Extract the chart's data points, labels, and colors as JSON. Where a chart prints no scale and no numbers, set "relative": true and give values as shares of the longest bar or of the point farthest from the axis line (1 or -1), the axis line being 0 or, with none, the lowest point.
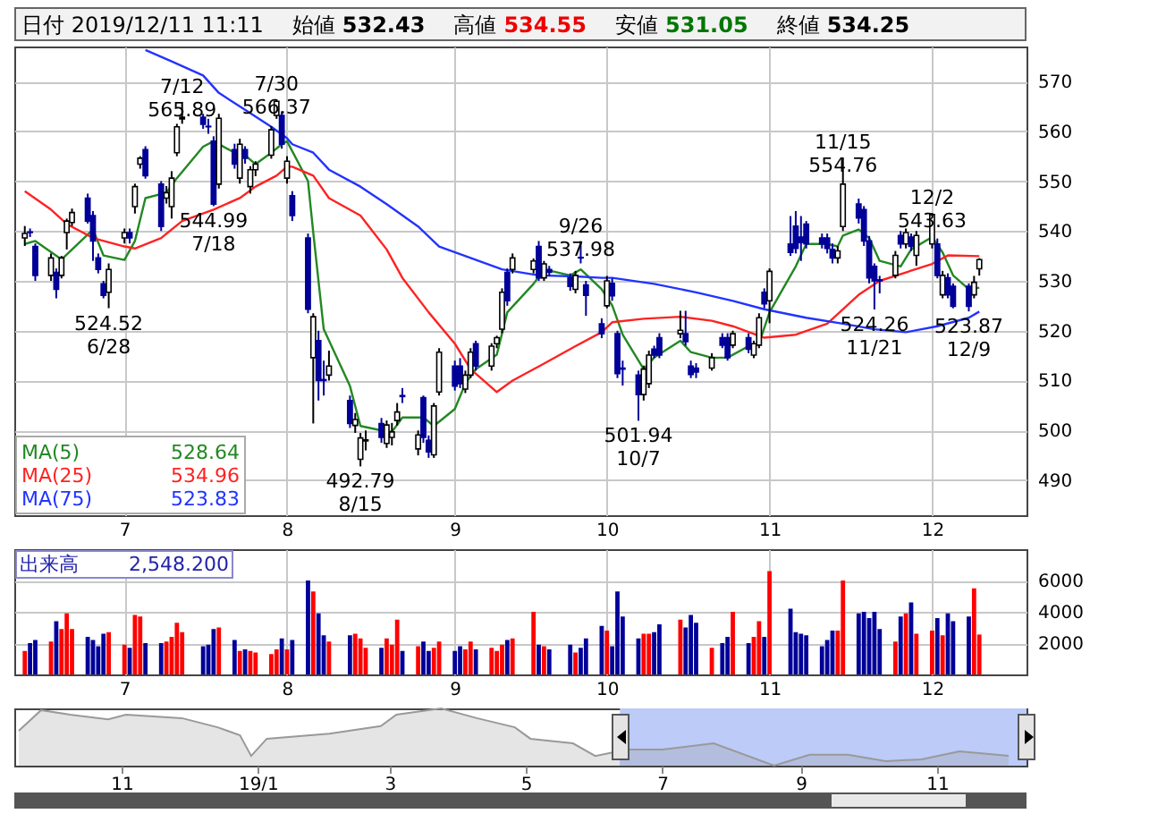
{
  "chart_data": [
    {
      "type": "candlestick",
      "title": "日付 2019/12/11 11:11",
      "colors": [
        "#ffffff",
        "#000099",
        "#000099",
        "#ffffff",
        "#000099",
        "#ffffff",
        "#ffffff",
        "#ffffff",
        "#000099",
        "#000099",
        "#000099",
        "#000099",
        "#ffffff",
        "#ffffff",
        "#000099",
        "#ffffff",
        "#ffffff",
        "#000099",
        "#000099",
        "#ffffff",
        "#ffffff",
        "#ffffff",
        "#ffffff",
        "#000099",
        "#000099",
        "#000099",
        "#ffffff",
        "#000099",
        "#ffffff",
        "#000099",
        "#ffffff",
        "#ffffff",
        "#ffffff",
        "#ffffff",
        "#000099",
        "#ffffff",
        "#000099",
        "#000099",
        "#ffffff",
        "#000099",
        "#000099",
        "#ffffff",
        "#000099",
        "#ffffff",
        "#ffffff",
        "#ffffff",
        "#000099",
        "#ffffff",
        "#ffffff",
        "#ffffff",
        "#000099",
        "#ffffff",
        "#000099",
        "#000099",
        "#ffffff",
        "#ffffff",
        "#000099",
        "#000099",
        "#ffffff",
        "#ffffff",
        "#000099",
        "#ffffff",
        "#ffffff",
        "#ffffff",
        "#000099",
        "#ffffff",
        "#ffffff",
        "#000099",
        "#ffffff",
        "#000099",
        "#000099",
        "#ffffff",
        "#000099",
        "#000099",
        "#000099",
        "#ffffff",
        "#000099",
        "#000099",
        "#000099",
        "#000099",
        "#ffffff",
        "#ffffff",
        "#000099",
        "#000099",
        "#ffffff",
        "#000099",
        "#000099",
        "#000099",
        "#ffffff",
        "#000099",
        "#000099",
        "#ffffff",
        "#000099",
        "#ffffff",
        "#ffffff",
        "#000099",
        "#ffffff",
        "#000099",
        "#000099",
        "#000099",
        "#000099",
        "#000099",
        "#000099",
        "#000099",
        "#ffffff",
        "#ffffff",
        "#000099",
        "#000099",
        "#000099",
        "#000099",
        "#000099",
        "#ffffff",
        "#000099",
        "#ffffff",
        "#000099",
        "#ffffff",
        "#ffffff",
        "#000099",
        "#ffffff",
        "#000099",
        "#000099",
        "#000099",
        "#ffffff",
        "#ffffff"
      ],
      "x": [
        "2019-06-12",
        "2019-06-13",
        "2019-06-14",
        "2019-06-17",
        "2019-06-18",
        "2019-06-19",
        "2019-06-20",
        "2019-06-21",
        "2019-06-24",
        "2019-06-25",
        "2019-06-26",
        "2019-06-27",
        "2019-06-28",
        "2019-07-01",
        "2019-07-02",
        "2019-07-03",
        "2019-07-04",
        "2019-07-05",
        "2019-07-08",
        "2019-07-09",
        "2019-07-10",
        "2019-07-11",
        "2019-07-12",
        "2019-07-16",
        "2019-07-17",
        "2019-07-18",
        "2019-07-19",
        "2019-07-22",
        "2019-07-23",
        "2019-07-24",
        "2019-07-25",
        "2019-07-26",
        "2019-07-29",
        "2019-07-30",
        "2019-07-31",
        "2019-08-01",
        "2019-08-02",
        "2019-08-05",
        "2019-08-06",
        "2019-08-07",
        "2019-08-08",
        "2019-08-09",
        "2019-08-13",
        "2019-08-14",
        "2019-08-15",
        "2019-08-16",
        "2019-08-19",
        "2019-08-20",
        "2019-08-21",
        "2019-08-22",
        "2019-08-23",
        "2019-08-26",
        "2019-08-27",
        "2019-08-28",
        "2019-08-29",
        "2019-08-30",
        "2019-09-02",
        "2019-09-03",
        "2019-09-04",
        "2019-09-05",
        "2019-09-06",
        "2019-09-09",
        "2019-09-10",
        "2019-09-11",
        "2019-09-12",
        "2019-09-13",
        "2019-09-17",
        "2019-09-18",
        "2019-09-19",
        "2019-09-20",
        "2019-09-24",
        "2019-09-25",
        "2019-09-26",
        "2019-09-27",
        "2019-09-30",
        "2019-10-01",
        "2019-10-02",
        "2019-10-03",
        "2019-10-04",
        "2019-10-07",
        "2019-10-08",
        "2019-10-09",
        "2019-10-10",
        "2019-10-11",
        "2019-10-15",
        "2019-10-16",
        "2019-10-17",
        "2019-10-18",
        "2019-10-21",
        "2019-10-23",
        "2019-10-24",
        "2019-10-25",
        "2019-10-28",
        "2019-10-29",
        "2019-10-30",
        "2019-10-31",
        "2019-11-01",
        "2019-11-05",
        "2019-11-06",
        "2019-11-07",
        "2019-11-08",
        "2019-11-11",
        "2019-11-12",
        "2019-11-13",
        "2019-11-14",
        "2019-11-15",
        "2019-11-18",
        "2019-11-19",
        "2019-11-20",
        "2019-11-21",
        "2019-11-22",
        "2019-11-25",
        "2019-11-26",
        "2019-11-27",
        "2019-11-28",
        "2019-11-29",
        "2019-12-02",
        "2019-12-03",
        "2019-12-04",
        "2019-12-05",
        "2019-12-06",
        "2019-12-09",
        "2019-12-10",
        "2019-12-11"
      ],
      "ohlc": [
        [
          538.6,
          541,
          537,
          539.5
        ],
        [
          539.8,
          540.5,
          538.8,
          539.7
        ],
        [
          536.9,
          537.5,
          530,
          531.1
        ],
        [
          531.1,
          535.5,
          530,
          534.6
        ],
        [
          531.7,
          532.5,
          526.5,
          528.3
        ],
        [
          531.1,
          535,
          530.5,
          534.6
        ],
        [
          539.7,
          542.5,
          536.3,
          542
        ],
        [
          541.7,
          544.5,
          541,
          543.7
        ],
        [
          546.6,
          547.5,
          541.5,
          542
        ],
        [
          543.1,
          544,
          534,
          538
        ],
        [
          534.6,
          535.5,
          531.5,
          532.3
        ],
        [
          529.4,
          530,
          526.5,
          527.1
        ],
        [
          527.7,
          533.5,
          524.52,
          532.3
        ],
        [
          538.6,
          540.5,
          537.5,
          539.7
        ],
        [
          539.7,
          540.5,
          537.5,
          538.6
        ],
        [
          544.9,
          549.5,
          543.5,
          548.9
        ],
        [
          553.4,
          555,
          552.5,
          554.6
        ],
        [
          556.3,
          557,
          550.5,
          551.1
        ],
        [
          549.4,
          550,
          540,
          540.9
        ],
        [
          546.6,
          549,
          545.5,
          547.7
        ],
        [
          544.9,
          552,
          542.5,
          550.6
        ],
        [
          555.7,
          561.5,
          555,
          560.9
        ],
        [
          562.5,
          565.89,
          561.5,
          562.8
        ],
        [
          562.8,
          563.5,
          560.5,
          561.4
        ],
        [
          561,
          562.5,
          559.5,
          560.9
        ],
        [
          558,
          559,
          544.99,
          545.4
        ],
        [
          549.4,
          563.5,
          548.5,
          562.6
        ],
        [
          556.3,
          557.5,
          552.5,
          553.4
        ],
        [
          550.6,
          558.5,
          549.5,
          557.4
        ],
        [
          556.3,
          557,
          553.5,
          554.6
        ],
        [
          548.9,
          553,
          547.5,
          552.3
        ],
        [
          552.3,
          554,
          551,
          553.4
        ],
        [
          555.2,
          561,
          554.5,
          560.3
        ],
        [
          563.2,
          566.37,
          562.5,
          566
        ],
        [
          563.2,
          564,
          556.5,
          557.4
        ],
        [
          550.6,
          555,
          549.5,
          554
        ],
        [
          547.1,
          548,
          542,
          543.1
        ],
        [
          538.6,
          539.5,
          523.5,
          524.3
        ],
        [
          514.6,
          523.5,
          501.4,
          522.8
        ],
        [
          518,
          520,
          506,
          510
        ],
        [
          510.2,
          514,
          507,
          510
        ],
        [
          511.1,
          516,
          510,
          512.9
        ],
        [
          506,
          507,
          500.5,
          501.4
        ],
        [
          501,
          503.5,
          499.5,
          502.2
        ],
        [
          494.2,
          499.5,
          492.79,
          498.5
        ],
        [
          497.9,
          500,
          496,
          498.1
        ],
        [
          501.4,
          502.5,
          497.5,
          498.6
        ],
        [
          497.4,
          502,
          496.5,
          501.1
        ],
        [
          498.6,
          501.5,
          497,
          499.7
        ],
        [
          502,
          505.5,
          501,
          503.7
        ],
        [
          507,
          508.5,
          505.5,
          506.8
        ],
        [
          496.3,
          500,
          495,
          499.1
        ],
        [
          506.6,
          507,
          497.5,
          498.6
        ],
        [
          498,
          499,
          494.5,
          495.7
        ],
        [
          495.1,
          505.5,
          494.5,
          504.9
        ],
        [
          507.7,
          516.5,
          507,
          515.7
        ],
        [
          512.9,
          514,
          508,
          508.9
        ],
        [
          512.9,
          514.5,
          508.5,
          509.4
        ],
        [
          508.3,
          512,
          507.5,
          511.1
        ],
        [
          511.1,
          516.5,
          510.5,
          515.7
        ],
        [
          517.4,
          518,
          512,
          512.9
        ],
        [
          512.9,
          517.5,
          512,
          516.9
        ],
        [
          517.4,
          519,
          516.5,
          518.6
        ],
        [
          520.3,
          528.5,
          519.5,
          527.7
        ],
        [
          531.7,
          532.5,
          525,
          526
        ],
        [
          532.3,
          535.5,
          531.5,
          534.6
        ],
        [
          532.3,
          534.5,
          531.5,
          534
        ],
        [
          536.9,
          538,
          530,
          530.6
        ],
        [
          530.6,
          534,
          530,
          533.4
        ],
        [
          532.3,
          533,
          531,
          531.7
        ],
        [
          530.6,
          531.5,
          528,
          528.9
        ],
        [
          528.3,
          532,
          527.5,
          531.1
        ],
        [
          534.7,
          537.98,
          533.5,
          534.6
        ],
        [
          529.2,
          530,
          523,
          527.1
        ],
        [
          521.4,
          522.5,
          518.5,
          519.4
        ],
        [
          525,
          531,
          524.5,
          530
        ],
        [
          529.5,
          530.5,
          526,
          527
        ],
        [
          519.4,
          520,
          510.5,
          511.4
        ],
        [
          512.5,
          514,
          509,
          512.3
        ],
        [
          511.1,
          512,
          501.94,
          507.2
        ],
        [
          507.2,
          513,
          506,
          512.3
        ],
        [
          509.4,
          516,
          508.5,
          515.1
        ],
        [
          516.3,
          517,
          514.5,
          515.1
        ],
        [
          518.6,
          519.5,
          514.5,
          515.1
        ],
        [
          519.4,
          524,
          518.5,
          520.1
        ],
        [
          519.4,
          524,
          517,
          517.8
        ],
        [
          512.9,
          514,
          510.5,
          511.2
        ],
        [
          512.5,
          513.5,
          510.5,
          511.7
        ],
        [
          512.5,
          515.5,
          512,
          514.6
        ],
        [
          518.6,
          519.5,
          516.5,
          517.1
        ],
        [
          518.6,
          519.5,
          514,
          514.6
        ],
        [
          517.1,
          520,
          516.5,
          519.4
        ],
        [
          518.6,
          519.5,
          515.5,
          516.3
        ],
        [
          515.1,
          518,
          514.5,
          517.4
        ],
        [
          517.1,
          523.5,
          516.5,
          522.6
        ],
        [
          527.7,
          528.5,
          524.5,
          525.4
        ],
        [
          526,
          532.5,
          521.5,
          531.9
        ],
        [
          537.4,
          543,
          535,
          535.7
        ],
        [
          541,
          544,
          535.5,
          536.5
        ],
        [
          538.8,
          543,
          534,
          537.7
        ],
        [
          541.4,
          542,
          536.5,
          537.4
        ],
        [
          538.6,
          539.5,
          536.5,
          537.4
        ],
        [
          538.6,
          539.5,
          535.5,
          536.5
        ],
        [
          536.3,
          537.5,
          533.5,
          534.6
        ],
        [
          534.6,
          537,
          533.5,
          536
        ],
        [
          540.9,
          554.76,
          540,
          549.4
        ],
        [
          545.4,
          546.5,
          541.5,
          542.6
        ],
        [
          544.3,
          545,
          537,
          538
        ],
        [
          538,
          539,
          529.5,
          530.6
        ],
        [
          532.9,
          533.5,
          524.26,
          530
        ],
        [
          530.2,
          531,
          527.5,
          530
        ],
        [
          531.1,
          536,
          530.5,
          535.1
        ],
        [
          539.1,
          540,
          536.5,
          537.4
        ],
        [
          537.4,
          540.5,
          536.5,
          539.7
        ],
        [
          538.8,
          539.5,
          536,
          536.9
        ],
        [
          535.1,
          540,
          533,
          539.1
        ],
        [
          537.4,
          543.63,
          536.5,
          543.3
        ],
        [
          537.4,
          538.5,
          530.5,
          531.1
        ],
        [
          527.2,
          532,
          526.5,
          531.1
        ],
        [
          530.6,
          531.5,
          526.5,
          527.2
        ],
        [
          528.9,
          529.5,
          524.5,
          524.9
        ],
        [
          528.9,
          529.5,
          523.87,
          524.9
        ],
        [
          527.2,
          531,
          526.5,
          529.7
        ],
        [
          532.43,
          534.55,
          531.05,
          534.25
        ]
      ],
      "series": [
        {
          "name": "MA(5) 528.64",
          "type": "line",
          "color": "#228822",
          "x": [
            "2019-06-12",
            "2019-06-14",
            "2019-06-19",
            "2019-06-25",
            "2019-06-27",
            "2019-07-01",
            "2019-07-03",
            "2019-07-05",
            "2019-07-09",
            "2019-07-11",
            "2019-07-16",
            "2019-07-18",
            "2019-07-22",
            "2019-07-24",
            "2019-07-26",
            "2019-07-29",
            "2019-07-31",
            "2019-08-01",
            "2019-08-05",
            "2019-08-06",
            "2019-08-08",
            "2019-08-13",
            "2019-08-15",
            "2019-08-19",
            "2019-08-21",
            "2019-08-23",
            "2019-08-27",
            "2019-08-29",
            "2019-09-02",
            "2019-09-04",
            "2019-09-06",
            "2019-09-10",
            "2019-09-12",
            "2019-09-17",
            "2019-09-19",
            "2019-09-24",
            "2019-09-26",
            "2019-09-30",
            "2019-10-02",
            "2019-10-04",
            "2019-10-08",
            "2019-10-10",
            "2019-10-15",
            "2019-10-17",
            "2019-10-21",
            "2019-10-24",
            "2019-10-28",
            "2019-10-30",
            "2019-11-01",
            "2019-11-06",
            "2019-11-08",
            "2019-11-12",
            "2019-11-14",
            "2019-11-15",
            "2019-11-18",
            "2019-11-20",
            "2019-11-22",
            "2019-11-26",
            "2019-11-28",
            "2019-12-02",
            "2019-12-04",
            "2019-12-06",
            "2019-12-09",
            "2019-12-10",
            "2019-12-11"
          ],
          "values": [
            537.4,
            538,
            534.3,
            540.3,
            535.1,
            534.2,
            538,
            546.6,
            547.7,
            550.6,
            556.9,
            558,
            555.7,
            555.2,
            553.4,
            555.7,
            557.4,
            558,
            550,
            539.7,
            520.3,
            508.9,
            500.9,
            500,
            499.7,
            502.6,
            502.6,
            500.9,
            504.3,
            509.4,
            512.3,
            515.2,
            523.7,
            529.4,
            532.3,
            531.1,
            532.3,
            528.3,
            525.1,
            519.2,
            512.3,
            514.6,
            518,
            515.7,
            514.6,
            514.6,
            516.9,
            517.4,
            523.7,
            532.9,
            537.4,
            537.4,
            536.9,
            539.1,
            540.3,
            538.6,
            534,
            532.9,
            536.3,
            538.8,
            535.7,
            531.1,
            528.3,
            528.5,
            528.64
          ]
        },
        {
          "name": "MA(25) 534.96",
          "type": "line",
          "color": "#ff2222",
          "x": [
            "2019-06-12",
            "2019-06-17",
            "2019-06-20",
            "2019-06-25",
            "2019-07-01",
            "2019-07-03",
            "2019-07-08",
            "2019-07-12",
            "2019-07-18",
            "2019-07-23",
            "2019-07-26",
            "2019-07-30",
            "2019-08-01",
            "2019-08-02",
            "2019-08-06",
            "2019-08-09",
            "2019-08-15",
            "2019-08-20",
            "2019-08-23",
            "2019-08-28",
            "2019-09-02",
            "2019-09-05",
            "2019-09-10",
            "2019-09-13",
            "2019-09-19",
            "2019-09-25",
            "2019-09-30",
            "2019-10-02",
            "2019-10-08",
            "2019-10-15",
            "2019-10-21",
            "2019-10-25",
            "2019-10-31",
            "2019-11-06",
            "2019-11-12",
            "2019-11-18",
            "2019-11-22",
            "2019-11-27",
            "2019-12-02",
            "2019-12-05",
            "2019-12-11"
          ],
          "values": [
            548,
            544.3,
            541.4,
            538.6,
            536.9,
            536.5,
            538.6,
            542,
            544.3,
            546.6,
            548.9,
            551.1,
            552.9,
            552.9,
            551.1,
            546.6,
            543.1,
            536.3,
            530.6,
            523.7,
            517.4,
            512.3,
            507.7,
            510,
            513.4,
            516.9,
            519.7,
            521.7,
            522.4,
            522.8,
            522,
            520.9,
            518.6,
            519.2,
            521.4,
            527.2,
            530,
            531.7,
            533.4,
            535.1,
            534.96
          ]
        },
        {
          "name": "MA(75) 523.83",
          "type": "line",
          "color": "#2233ff",
          "x": [
            "2019-07-05",
            "2019-07-10",
            "2019-07-16",
            "2019-07-19",
            "2019-07-24",
            "2019-07-29",
            "2019-08-01",
            "2019-08-02",
            "2019-08-06",
            "2019-08-09",
            "2019-08-15",
            "2019-08-20",
            "2019-08-26",
            "2019-08-30",
            "2019-09-05",
            "2019-09-11",
            "2019-09-18",
            "2019-09-25",
            "2019-09-30",
            "2019-10-02",
            "2019-10-10",
            "2019-10-18",
            "2019-10-25",
            "2019-10-31",
            "2019-11-08",
            "2019-11-15",
            "2019-11-21",
            "2019-11-27",
            "2019-12-03",
            "2019-12-09",
            "2019-12-11"
          ],
          "values": [
            576.3,
            574,
            571.2,
            567.7,
            564.3,
            560.9,
            558.6,
            557.4,
            555.7,
            552.3,
            548.9,
            545.4,
            540.9,
            536.9,
            534.6,
            532.3,
            531.1,
            530.9,
            530.6,
            530.6,
            529.4,
            527.7,
            526,
            524.3,
            522.6,
            521.4,
            520.3,
            519.7,
            520.9,
            522.6,
            523.83
          ]
        }
      ],
      "xlim": [
        "2019-06-10",
        "2019-12-20"
      ],
      "xticks": [
        {
          "value": "2019-07-01",
          "label": "7"
        },
        {
          "value": "2019-08-01",
          "label": "8"
        },
        {
          "value": "2019-09-02",
          "label": "9"
        },
        {
          "value": "2019-10-01",
          "label": "10"
        },
        {
          "value": "2019-11-01",
          "label": "11"
        },
        {
          "value": "2019-12-02",
          "label": "12"
        }
      ],
      "ylim": [
        483,
        577
      ],
      "yticks": [
        490,
        500,
        510,
        520,
        530,
        540,
        550,
        560,
        570
      ],
      "grid": true,
      "annotations": [
        "始値 532.43",
        "高値 534.55",
        "安値 531.05",
        "終値 534.25",
        {
          "text": "524.52\n6/28",
          "x": "2019-06-28",
          "y": 524.52
        },
        {
          "text": "7/12\n565.89",
          "x": "2019-07-12",
          "y": 565.89
        },
        {
          "text": "544.99\n7/18",
          "x": "2019-07-18",
          "y": 544.99
        },
        {
          "text": "7/30\n566.37",
          "x": "2019-07-30",
          "y": 566.37
        },
        {
          "text": "492.79\n8/15",
          "x": "2019-08-15",
          "y": 492.79
        },
        {
          "text": "9/26\n537.98",
          "x": "2019-09-26",
          "y": 537.98
        },
        {
          "text": "501.94\n10/7",
          "x": "2019-10-07",
          "y": 501.94
        },
        {
          "text": "11/15\n554.76",
          "x": "2019-11-15",
          "y": 554.76
        },
        {
          "text": "524.26\n11/21",
          "x": "2019-11-21",
          "y": 524.26
        },
        {
          "text": "12/2\n543.63",
          "x": "2019-12-02",
          "y": 543.63
        },
        {
          "text": "523.87\n12/9",
          "x": "2019-12-09",
          "y": 523.87
        }
      ]
    },
    {
      "type": "bar",
      "x": [
        "2019-06-12",
        "2019-06-13",
        "2019-06-14",
        "2019-06-17",
        "2019-06-18",
        "2019-06-19",
        "2019-06-20",
        "2019-06-21",
        "2019-06-24",
        "2019-06-25",
        "2019-06-26",
        "2019-06-27",
        "2019-06-28",
        "2019-07-01",
        "2019-07-02",
        "2019-07-03",
        "2019-07-04",
        "2019-07-05",
        "2019-07-08",
        "2019-07-09",
        "2019-07-10",
        "2019-07-11",
        "2019-07-12",
        "2019-07-16",
        "2019-07-17",
        "2019-07-18",
        "2019-07-19",
        "2019-07-22",
        "2019-07-23",
        "2019-07-24",
        "2019-07-25",
        "2019-07-26",
        "2019-07-29",
        "2019-07-30",
        "2019-07-31",
        "2019-08-01",
        "2019-08-02",
        "2019-08-05",
        "2019-08-06",
        "2019-08-07",
        "2019-08-08",
        "2019-08-09",
        "2019-08-13",
        "2019-08-14",
        "2019-08-15",
        "2019-08-16",
        "2019-08-19",
        "2019-08-20",
        "2019-08-21",
        "2019-08-22",
        "2019-08-23",
        "2019-08-26",
        "2019-08-27",
        "2019-08-28",
        "2019-08-29",
        "2019-08-30",
        "2019-09-02",
        "2019-09-03",
        "2019-09-04",
        "2019-09-05",
        "2019-09-06",
        "2019-09-09",
        "2019-09-10",
        "2019-09-11",
        "2019-09-12",
        "2019-09-13",
        "2019-09-17",
        "2019-09-18",
        "2019-09-19",
        "2019-09-20",
        "2019-09-24",
        "2019-09-25",
        "2019-09-26",
        "2019-09-27",
        "2019-09-30",
        "2019-10-01",
        "2019-10-02",
        "2019-10-03",
        "2019-10-04",
        "2019-10-07",
        "2019-10-08",
        "2019-10-09",
        "2019-10-10",
        "2019-10-11",
        "2019-10-15",
        "2019-10-16",
        "2019-10-17",
        "2019-10-18",
        "2019-10-21",
        "2019-10-23",
        "2019-10-24",
        "2019-10-25",
        "2019-10-28",
        "2019-10-29",
        "2019-10-30",
        "2019-10-31",
        "2019-11-01",
        "2019-11-05",
        "2019-11-06",
        "2019-11-07",
        "2019-11-08",
        "2019-11-11",
        "2019-11-12",
        "2019-11-13",
        "2019-11-14",
        "2019-11-15",
        "2019-11-18",
        "2019-11-19",
        "2019-11-20",
        "2019-11-21",
        "2019-11-22",
        "2019-11-25",
        "2019-11-26",
        "2019-11-27",
        "2019-11-28",
        "2019-11-29",
        "2019-12-02",
        "2019-12-03",
        "2019-12-04",
        "2019-12-05",
        "2019-12-06",
        "2019-12-09",
        "2019-12-10",
        "2019-12-11"
      ],
      "values": [
        1500,
        2000,
        2200,
        2100,
        3400,
        2900,
        3900,
        2900,
        2400,
        2200,
        1800,
        2600,
        2700,
        1900,
        1700,
        3800,
        3700,
        2000,
        2000,
        2100,
        2400,
        3300,
        2700,
        1800,
        1900,
        2900,
        3000,
        2200,
        1500,
        1600,
        1500,
        1400,
        1300,
        1600,
        2300,
        1600,
        2200,
        6000,
        5300,
        3900,
        2500,
        2100,
        2500,
        2600,
        2300,
        1700,
        1700,
        2300,
        1900,
        3500,
        1500,
        1800,
        2100,
        1500,
        1700,
        2100,
        1500,
        1800,
        1600,
        2100,
        1600,
        1700,
        1500,
        1900,
        2200,
        2300,
        4000,
        1900,
        1800,
        1600,
        1900,
        1400,
        1700,
        2300,
        3100,
        2800,
        1800,
        5300,
        3700,
        2300,
        2600,
        2600,
        2700,
        3200,
        3500,
        3000,
        3800,
        3300,
        1700,
        2000,
        2400,
        4000,
        2000,
        2400,
        3400,
        2400,
        6600,
        4200,
        2700,
        2600,
        2500,
        1800,
        2200,
        2800,
        2800,
        6000,
        3900,
        4000,
        3600,
        4000,
        2900,
        2100,
        3700,
        3900,
        4600,
        2600,
        2800,
        3600,
        2500,
        3900,
        3400,
        3700,
        5500,
        2548.2
      ],
      "colors": [
        "#ff0000",
        "#000099",
        "#000099",
        "#ff0000",
        "#000099",
        "#ff0000",
        "#ff0000",
        "#ff0000",
        "#000099",
        "#000099",
        "#000099",
        "#000099",
        "#ff0000",
        "#ff0000",
        "#000099",
        "#ff0000",
        "#ff0000",
        "#000099",
        "#000099",
        "#ff0000",
        "#ff0000",
        "#ff0000",
        "#ff0000",
        "#000099",
        "#000099",
        "#000099",
        "#ff0000",
        "#000099",
        "#ff0000",
        "#000099",
        "#ff0000",
        "#ff0000",
        "#ff0000",
        "#ff0000",
        "#000099",
        "#ff0000",
        "#000099",
        "#000099",
        "#ff0000",
        "#000099",
        "#000099",
        "#ff0000",
        "#000099",
        "#ff0000",
        "#ff0000",
        "#ff0000",
        "#000099",
        "#ff0000",
        "#ff0000",
        "#ff0000",
        "#000099",
        "#ff0000",
        "#000099",
        "#000099",
        "#ff0000",
        "#ff0000",
        "#000099",
        "#000099",
        "#ff0000",
        "#ff0000",
        "#000099",
        "#ff0000",
        "#ff0000",
        "#ff0000",
        "#000099",
        "#ff0000",
        "#ff0000",
        "#000099",
        "#ff0000",
        "#000099",
        "#000099",
        "#ff0000",
        "#000099",
        "#000099",
        "#000099",
        "#ff0000",
        "#000099",
        "#000099",
        "#000099",
        "#000099",
        "#ff0000",
        "#ff0000",
        "#000099",
        "#000099",
        "#ff0000",
        "#000099",
        "#000099",
        "#000099",
        "#ff0000",
        "#000099",
        "#000099",
        "#ff0000",
        "#000099",
        "#ff0000",
        "#ff0000",
        "#000099",
        "#ff0000",
        "#000099",
        "#000099",
        "#000099",
        "#000099",
        "#000099",
        "#000099",
        "#000099",
        "#ff0000",
        "#ff0000",
        "#000099",
        "#000099",
        "#000099",
        "#000099",
        "#000099",
        "#ff0000",
        "#000099",
        "#ff0000",
        "#000099",
        "#ff0000",
        "#ff0000",
        "#000099",
        "#ff0000",
        "#000099",
        "#000099",
        "#000099",
        "#ff0000",
        "#ff0000"
      ],
      "xlim": [
        "2019-06-10",
        "2019-12-20"
      ],
      "xticks": [
        {
          "value": "2019-07-01",
          "label": "7"
        },
        {
          "value": "2019-08-01",
          "label": "8"
        },
        {
          "value": "2019-09-02",
          "label": "9"
        },
        {
          "value": "2019-10-01",
          "label": "10"
        },
        {
          "value": "2019-11-01",
          "label": "11"
        },
        {
          "value": "2019-12-02",
          "label": "12"
        }
      ],
      "ylim": [
        0,
        8000
      ],
      "yticks": [
        2000,
        4000,
        6000
      ],
      "grid": true,
      "annotations": [
        "出来高 2,548.200"
      ]
    },
    {
      "type": "area",
      "relative": true,
      "color": "#999999",
      "x": [
        "2018-09-16",
        "2018-09-26",
        "2018-10-09",
        "2018-10-26",
        "2018-11-03",
        "2018-11-28",
        "2018-12-14",
        "2018-12-24",
        "2018-12-29",
        "2019-01-05",
        "2019-02-02",
        "2019-02-25",
        "2019-03-04",
        "2019-03-24",
        "2019-04-09",
        "2019-04-26",
        "2019-05-03",
        "2019-05-22",
        "2019-06-01",
        "2019-06-15",
        "2019-07-01",
        "2019-07-24",
        "2019-08-20",
        "2019-09-05",
        "2019-09-22",
        "2019-10-09",
        "2019-10-25",
        "2019-11-11",
        "2019-12-03"
      ],
      "values": [
        0.61,
        0.97,
        0.89,
        0.81,
        0.89,
        0.83,
        0.67,
        0.53,
        0.17,
        0.47,
        0.56,
        0.69,
        0.89,
        1,
        0.83,
        0.67,
        0.47,
        0.39,
        0.17,
        0.28,
        0.28,
        0.39,
        0,
        0.19,
        0.19,
        0.08,
        0.11,
        0.25,
        0.17
      ],
      "xlim": [
        "2018-09-14",
        "2019-12-11"
      ],
      "xticks": [
        {
          "value": "2018-11-01",
          "label": "11"
        },
        {
          "value": "2019-01-01",
          "label": "19/1"
        },
        {
          "value": "2019-03-01",
          "label": "3"
        },
        {
          "value": "2019-05-01",
          "label": "5"
        },
        {
          "value": "2019-07-01",
          "label": "7"
        },
        {
          "value": "2019-09-01",
          "label": "9"
        },
        {
          "value": "2019-11-01",
          "label": "11"
        }
      ],
      "bands": [
        {
          "axis": "x",
          "from": "2019-06-12",
          "to": "2019-12-11",
          "color": "#bccbf7"
        }
      ]
    }
  ]
}
